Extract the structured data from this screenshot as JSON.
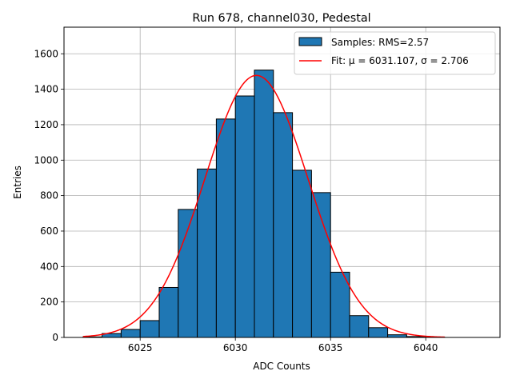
{
  "chart_data": {
    "type": "bar",
    "title": "Run 678, channel030, Pedestal",
    "xlabel": "ADC Counts",
    "ylabel": "Entries",
    "xlim": [
      6021.0,
      6043.9
    ],
    "ylim": [
      0,
      1750
    ],
    "x_ticks": [
      6025,
      6030,
      6035,
      6040
    ],
    "y_ticks": [
      0,
      200,
      400,
      600,
      800,
      1000,
      1200,
      1400,
      1600
    ],
    "grid": true,
    "legend_position": "top-right",
    "bin_width": 1,
    "series": [
      {
        "name": "Samples: RMS=2.57",
        "type": "histogram",
        "color": "#1f77b4",
        "bin_starts": [
          6022,
          6023,
          6024,
          6025,
          6026,
          6027,
          6028,
          6029,
          6030,
          6031,
          6032,
          6033,
          6034,
          6035,
          6036,
          6037,
          6038,
          6039,
          6040
        ],
        "values": [
          3,
          22,
          45,
          95,
          282,
          722,
          950,
          1232,
          1362,
          1508,
          1268,
          943,
          817,
          368,
          123,
          55,
          15,
          5,
          1
        ]
      },
      {
        "name": "Fit: μ = 6031.107, σ = 2.706",
        "type": "gaussian-fit",
        "color": "#ff0000",
        "mu": 6031.107,
        "sigma": 2.706,
        "amplitude": 1478,
        "x_range": [
          6022,
          6041
        ]
      }
    ]
  }
}
